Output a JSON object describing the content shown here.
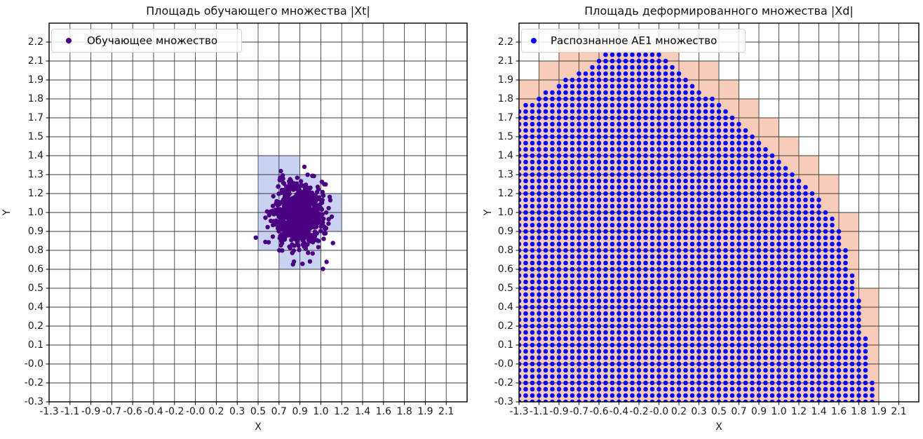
{
  "figure": {
    "background": "#ffffff"
  },
  "plots": [
    {
      "title": "Площадь обучающего множества |Xt|",
      "xlabel": "X",
      "ylabel": "Y",
      "legend": {
        "label": "Обучающее множество",
        "marker_color": "#4b0082"
      },
      "x_ticks": [
        "-1.3",
        "-1.1",
        "-0.9",
        "-0.7",
        "-0.6",
        "-0.4",
        "-0.2",
        "-0.0",
        "0.2",
        "0.3",
        "0.5",
        "0.7",
        "0.9",
        "1.0",
        "1.2",
        "1.4",
        "1.6",
        "1.8",
        "1.9",
        "2.1"
      ],
      "y_ticks": [
        "2.2",
        "2.1",
        "1.9",
        "1.8",
        "1.7",
        "1.5",
        "1.4",
        "1.3",
        "1.2",
        "1.0",
        "0.9",
        "0.8",
        "0.6",
        "0.5",
        "0.4",
        "0.2",
        "0.1",
        "-0.0",
        "-0.2",
        "-0.3"
      ],
      "grid_color": "#3c3c3c",
      "cell_color": "#c9d2f2",
      "highlight_cells": [
        [
          10,
          7
        ],
        [
          11,
          7
        ],
        [
          10,
          8
        ],
        [
          11,
          8
        ],
        [
          12,
          8
        ],
        [
          10,
          9
        ],
        [
          11,
          9
        ],
        [
          12,
          9
        ],
        [
          13,
          9
        ],
        [
          10,
          10
        ],
        [
          11,
          10
        ],
        [
          12,
          10
        ],
        [
          13,
          10
        ],
        [
          10,
          11
        ],
        [
          11,
          11
        ],
        [
          12,
          11
        ],
        [
          11,
          12
        ],
        [
          12,
          12
        ]
      ],
      "scatter": {
        "color": "#4b0082",
        "count": 850,
        "center_cell": [
          11.9,
          10.15
        ],
        "sigma_cell": [
          0.58,
          0.82
        ],
        "radius": 3.2,
        "seed": 11
      }
    },
    {
      "title": "Площадь деформированного множества |Xd|",
      "xlabel": "X",
      "ylabel": "Y",
      "legend": {
        "label": "Распознанное AE1 множество",
        "marker_color": "#0707f9"
      },
      "x_ticks": [
        "-1.3",
        "-1.1",
        "-0.9",
        "-0.7",
        "-0.6",
        "-0.4",
        "-0.2",
        "-0.0",
        "0.2",
        "0.3",
        "0.5",
        "0.7",
        "0.9",
        "1.0",
        "1.2",
        "1.4",
        "1.6",
        "1.8",
        "1.9",
        "2.1"
      ],
      "y_ticks": [
        "2.2",
        "2.1",
        "1.9",
        "1.8",
        "1.7",
        "1.5",
        "1.4",
        "1.3",
        "1.2",
        "1.0",
        "0.9",
        "0.8",
        "0.6",
        "0.5",
        "0.4",
        "0.2",
        "0.1",
        "-0.0",
        "-0.2",
        "-0.3"
      ],
      "grid_color": "#3c3c3c",
      "cell_color": "#f8ccb8",
      "mesh": {
        "color": "#0707f9",
        "radius": 3.3,
        "dots_per_cell": 3,
        "cell_margin": 0.55,
        "boundary_cells": [
          [
            0,
            4.5
          ],
          [
            1,
            3.85
          ],
          [
            2,
            3.2
          ],
          [
            3,
            2.55
          ],
          [
            4,
            2.0
          ],
          [
            4.3,
            1.58
          ],
          [
            7.0,
            1.58
          ],
          [
            7.6,
            1.95
          ],
          [
            8,
            2.6
          ],
          [
            9,
            3.4
          ],
          [
            10,
            4.3
          ],
          [
            11,
            5.15
          ],
          [
            12,
            6.2
          ],
          [
            13,
            7.2
          ],
          [
            14,
            8.2
          ],
          [
            15,
            9.3
          ],
          [
            15.7,
            10.1
          ],
          [
            16.2,
            11.3
          ],
          [
            16.6,
            12.8
          ],
          [
            16.9,
            14.1
          ],
          [
            17.2,
            15.8
          ],
          [
            17.45,
            17.3
          ],
          [
            17.65,
            18.6
          ],
          [
            17.8,
            20
          ]
        ]
      }
    }
  ],
  "chart_data": [
    {
      "type": "scatter",
      "title": "Площадь обучающего множества |Xt|",
      "xlabel": "X",
      "ylabel": "Y",
      "x_tick_labels": [
        "-1.3",
        "-1.1",
        "-0.9",
        "-0.7",
        "-0.6",
        "-0.4",
        "-0.2",
        "-0.0",
        "0.2",
        "0.3",
        "0.5",
        "0.7",
        "0.9",
        "1.0",
        "1.2",
        "1.4",
        "1.6",
        "1.8",
        "1.9",
        "2.1"
      ],
      "y_tick_labels": [
        "2.2",
        "2.1",
        "1.9",
        "1.8",
        "1.7",
        "1.5",
        "1.4",
        "1.3",
        "1.2",
        "1.0",
        "0.9",
        "0.8",
        "0.6",
        "0.5",
        "0.4",
        "0.2",
        "0.1",
        "-0.0",
        "-0.2",
        "-0.3"
      ],
      "grid": true,
      "legend_position": "upper left",
      "series": [
        {
          "name": "Обучающее множество",
          "marker": "dot",
          "color": "#4b0082",
          "distribution": "gaussian cluster",
          "mean_xy": [
            0.97,
            0.97
          ],
          "std_xy": [
            0.1,
            0.11
          ],
          "n_points": 850
        }
      ],
      "highlight_region": {
        "color": "#c9d2f2",
        "description": "grid cells covering the training cluster, x from 0.5 to 1.2, y from 0.6 to 1.4"
      }
    },
    {
      "type": "scatter",
      "title": "Площадь деформированного множества |Xd|",
      "xlabel": "X",
      "ylabel": "Y",
      "x_tick_labels": [
        "-1.3",
        "-1.1",
        "-0.9",
        "-0.7",
        "-0.6",
        "-0.4",
        "-0.2",
        "-0.0",
        "0.2",
        "0.3",
        "0.5",
        "0.7",
        "0.9",
        "1.0",
        "1.2",
        "1.4",
        "1.6",
        "1.8",
        "1.9",
        "2.1"
      ],
      "y_tick_labels": [
        "2.2",
        "2.1",
        "1.9",
        "1.8",
        "1.7",
        "1.5",
        "1.4",
        "1.3",
        "1.2",
        "1.0",
        "0.9",
        "0.8",
        "0.6",
        "0.5",
        "0.4",
        "0.2",
        "0.1",
        "-0.0",
        "-0.2",
        "-0.3"
      ],
      "grid": true,
      "legend_position": "upper left",
      "series": [
        {
          "name": "Распознанное AE1 множество",
          "marker": "dot",
          "color": "#0707f9",
          "distribution": "uniform grid mesh filling region",
          "x_step": 0.06,
          "y_step": 0.044,
          "fills_below_boundary": true,
          "region_boundary_xy": [
            [
              -1.3,
              1.74
            ],
            [
              -1.12,
              1.83
            ],
            [
              -0.94,
              1.92
            ],
            [
              -0.76,
              2.0
            ],
            [
              -0.58,
              2.08
            ],
            [
              -0.52,
              2.12
            ],
            [
              -0.05,
              2.12
            ],
            [
              0.06,
              2.07
            ],
            [
              0.2,
              1.99
            ],
            [
              0.35,
              1.88
            ],
            [
              0.49,
              1.77
            ],
            [
              0.67,
              1.65
            ],
            [
              0.85,
              1.52
            ],
            [
              1.03,
              1.38
            ],
            [
              1.21,
              1.25
            ],
            [
              1.38,
              1.11
            ],
            [
              1.51,
              1.0
            ],
            [
              1.6,
              0.84
            ],
            [
              1.67,
              0.65
            ],
            [
              1.72,
              0.48
            ],
            [
              1.78,
              0.25
            ],
            [
              1.82,
              0.06
            ],
            [
              1.86,
              -0.12
            ],
            [
              1.88,
              -0.3
            ]
          ]
        }
      ],
      "highlight_region": {
        "color": "#f8ccb8",
        "description": "grid cells covering the deformed set (staircase envelope of the dot region)"
      }
    }
  ]
}
